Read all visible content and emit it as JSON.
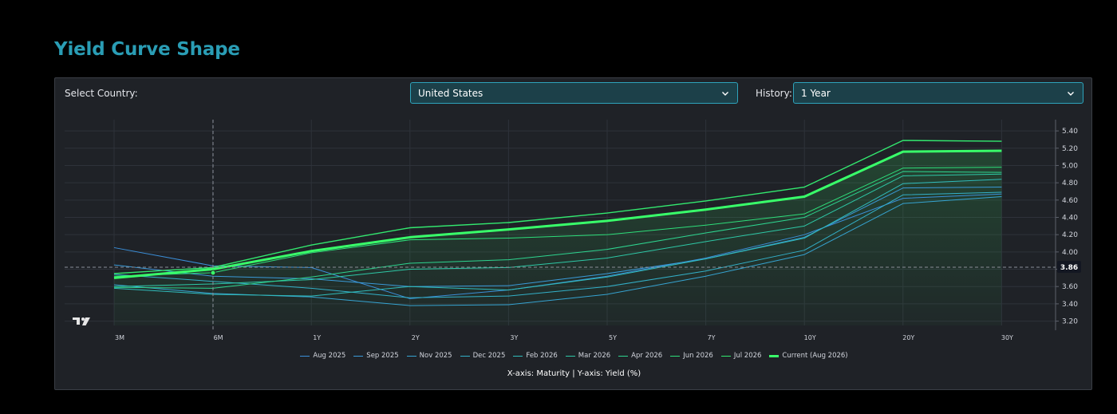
{
  "page": {
    "title": "Yield Curve Shape"
  },
  "controls": {
    "country_label": "Select Country:",
    "country_value": "United States",
    "history_label": "History:",
    "history_value": "1 Year"
  },
  "crosshair_label": "3.86",
  "axis_caption": "X-axis: Maturity | Y-axis: Yield (%)",
  "chart_data": {
    "type": "line",
    "categories": [
      "3M",
      "6M",
      "1Y",
      "2Y",
      "3Y",
      "5Y",
      "7Y",
      "10Y",
      "20Y",
      "30Y"
    ],
    "yticks": [
      "3.20",
      "3.40",
      "3.60",
      "3.80",
      "4.00",
      "4.20",
      "4.40",
      "4.60",
      "4.80",
      "5.00",
      "5.20",
      "5.40"
    ],
    "ylim": [
      3.15,
      5.53
    ],
    "grid": true,
    "legend_position": "bottom",
    "series": [
      {
        "name": "Aug 2025",
        "color": "#3b8fd9",
        "width": 1,
        "values": [
          4.05,
          3.84,
          3.82,
          3.46,
          3.56,
          3.72,
          3.93,
          4.2,
          4.62,
          4.67
        ]
      },
      {
        "name": "Sep 2025",
        "color": "#3a9ad8",
        "width": 1,
        "values": [
          3.85,
          3.72,
          3.69,
          3.6,
          3.61,
          3.75,
          3.92,
          4.17,
          4.74,
          4.75
        ]
      },
      {
        "name": "Nov 2025",
        "color": "#36a4d2",
        "width": 1,
        "values": [
          3.62,
          3.52,
          3.48,
          3.38,
          3.39,
          3.51,
          3.72,
          3.97,
          4.56,
          4.64
        ]
      },
      {
        "name": "Dec 2025",
        "color": "#33b0c8",
        "width": 1,
        "values": [
          3.74,
          3.66,
          3.58,
          3.47,
          3.49,
          3.6,
          3.78,
          4.02,
          4.66,
          4.69
        ]
      },
      {
        "name": "Feb 2026",
        "color": "#30bcbb",
        "width": 1,
        "values": [
          3.58,
          3.51,
          3.49,
          3.6,
          3.56,
          3.71,
          3.92,
          4.16,
          4.79,
          4.84
        ]
      },
      {
        "name": "Mar 2026",
        "color": "#2ec8a6",
        "width": 1,
        "values": [
          3.6,
          3.63,
          3.68,
          3.8,
          3.82,
          3.93,
          4.12,
          4.3,
          4.88,
          4.9
        ]
      },
      {
        "name": "Apr 2026",
        "color": "#2ed48f",
        "width": 1,
        "values": [
          3.59,
          3.58,
          3.71,
          3.87,
          3.91,
          4.03,
          4.22,
          4.4,
          4.93,
          4.92
        ]
      },
      {
        "name": "Jun 2026",
        "color": "#2ede7a",
        "width": 1,
        "values": [
          3.72,
          3.76,
          3.99,
          4.14,
          4.16,
          4.2,
          4.31,
          4.44,
          4.97,
          4.98
        ]
      },
      {
        "name": "Jul 2026",
        "color": "#33e86f",
        "width": 1.4,
        "values": [
          3.75,
          3.82,
          4.08,
          4.28,
          4.34,
          4.45,
          4.59,
          4.75,
          5.29,
          5.28
        ]
      },
      {
        "name": "Current (Aug 2026)",
        "color": "#39ff6a",
        "width": 3,
        "values": [
          3.7,
          3.8,
          4.01,
          4.17,
          4.26,
          4.36,
          4.49,
          4.64,
          5.16,
          5.17
        ]
      }
    ]
  }
}
